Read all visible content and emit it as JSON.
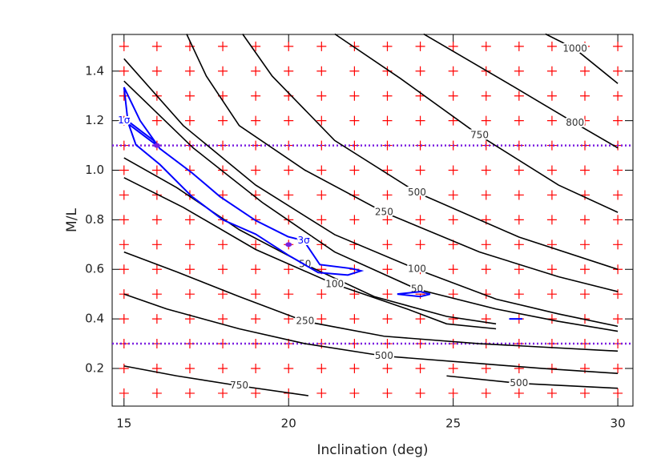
{
  "chart_data": {
    "type": "contour",
    "x_label": "Inclination (deg)",
    "y_label": "M/L",
    "xlim": [
      14.64,
      30.46
    ],
    "ylim": [
      0.048,
      1.548
    ],
    "xticks": [
      15,
      20,
      25,
      30
    ],
    "yticks": [
      0.2,
      0.4,
      0.6,
      0.8,
      {
        "value": 1,
        "label": "1.0"
      },
      1.2,
      1.4
    ],
    "model_grid": {
      "color": "#ff0000",
      "inclinations": [
        15,
        16,
        17,
        18,
        19,
        20,
        21,
        22,
        23,
        24,
        25,
        26,
        27,
        28,
        29,
        30
      ],
      "ml": [
        0.1,
        0.2,
        0.3,
        0.4,
        0.5,
        0.6,
        0.7,
        0.8,
        0.9,
        1.0,
        1.1,
        1.2,
        1.3,
        1.4,
        1.5
      ]
    },
    "hlines": {
      "color": "#7b1fe0",
      "values": [
        1.1,
        0.3
      ]
    },
    "contours": [
      {
        "label": "1000",
        "color": "#000000",
        "x": [
          27.8,
          28.7,
          30
        ],
        "y": [
          1.55,
          1.49,
          1.35
        ]
      },
      {
        "label": "800",
        "color": "#000000",
        "x": [
          24.1,
          26.8,
          28.7,
          30
        ],
        "y": [
          1.55,
          1.34,
          1.19,
          1.09
        ]
      },
      {
        "label": "750",
        "color": "#000000",
        "x": [
          21.4,
          23.4,
          25.8,
          28.2,
          30
        ],
        "y": [
          1.55,
          1.37,
          1.14,
          0.94,
          0.83
        ]
      },
      {
        "label": "500",
        "color": "#000000",
        "x": [
          18.6,
          19.5,
          21.4,
          23.9,
          27.0,
          30
        ],
        "y": [
          1.55,
          1.38,
          1.12,
          0.91,
          0.73,
          0.6
        ]
      },
      {
        "label": "250",
        "color": "#000000",
        "x": [
          16.9,
          17.5,
          18.5,
          20.5,
          22.9,
          25.8,
          28.2,
          30
        ],
        "y": [
          1.55,
          1.38,
          1.18,
          1.0,
          0.83,
          0.67,
          0.57,
          0.51
        ]
      },
      {
        "label": "100",
        "color": "#000000",
        "x": [
          15,
          16.8,
          19,
          21.4,
          23.9,
          26.3,
          28.2,
          30
        ],
        "y": [
          1.45,
          1.18,
          0.94,
          0.74,
          0.6,
          0.48,
          0.42,
          0.37
        ]
      },
      {
        "label": "50",
        "color": "#000000",
        "x": [
          15,
          17.1,
          19.2,
          21.4,
          23.9,
          26.3,
          28.2,
          30
        ],
        "y": [
          1.36,
          1.09,
          0.87,
          0.67,
          0.52,
          0.44,
          0.39,
          0.35
        ]
      },
      {
        "label": "50",
        "color": "#000000",
        "x": [
          15,
          16.6,
          18.5,
          20.5,
          22.6,
          24.8,
          26.3
        ],
        "y": [
          1.05,
          0.93,
          0.76,
          0.62,
          0.49,
          0.41,
          0.38
        ]
      },
      {
        "label": "100",
        "color": "#000000",
        "x": [
          15,
          16.8,
          19,
          21.4,
          23.6,
          24.8,
          26.3
        ],
        "y": [
          0.97,
          0.85,
          0.68,
          0.54,
          0.44,
          0.38,
          0.36
        ]
      },
      {
        "label": "250",
        "color": "#000000",
        "x": [
          15,
          16.6,
          18.5,
          20.5,
          22.9,
          25.8,
          30
        ],
        "y": [
          0.67,
          0.59,
          0.49,
          0.39,
          0.33,
          0.3,
          0.27
        ]
      },
      {
        "label": "500",
        "color": "#000000",
        "x": [
          15,
          16.3,
          18.5,
          20.5,
          22.9,
          25.8,
          27.7,
          30
        ],
        "y": [
          0.5,
          0.44,
          0.36,
          0.3,
          0.25,
          0.22,
          0.2,
          0.18
        ]
      },
      {
        "label": "500",
        "color": "#000000",
        "x": [
          24.8,
          27.0,
          30
        ],
        "y": [
          0.17,
          0.14,
          0.12
        ]
      },
      {
        "label": "750",
        "color": "#000000",
        "x": [
          15,
          16.6,
          18.5,
          20.6
        ],
        "y": [
          0.21,
          0.17,
          0.13,
          0.09
        ]
      },
      {
        "label": "3σ",
        "color": "#0000ff",
        "x": [
          15,
          15.49,
          16.09,
          17.06,
          17.91,
          19.0,
          19.98,
          20.46,
          20.95,
          21.92,
          22.2,
          21.8,
          20.9,
          19.98,
          19.0,
          18.0,
          17.06,
          16.09,
          15.36,
          15.12,
          15
        ],
        "y": [
          1.335,
          1.2,
          1.087,
          0.99,
          0.894,
          0.797,
          0.732,
          0.716,
          0.619,
          0.603,
          0.594,
          0.577,
          0.587,
          0.658,
          0.742,
          0.8,
          0.894,
          1.023,
          1.103,
          1.194,
          1.335
        ]
      },
      {
        "label": "1σ",
        "color": "#0000ff",
        "x": [
          15,
          16,
          15.9,
          15,
          15
        ],
        "y": [
          1.2,
          1.1,
          1.12,
          1.21,
          1.2
        ]
      },
      {
        "label": "",
        "color": "#0000ff",
        "x": [
          23.3,
          24,
          24.3,
          24,
          23.3
        ],
        "y": [
          0.5,
          0.51,
          0.5,
          0.49,
          0.5
        ]
      },
      {
        "label": "",
        "color": "#0000ff",
        "x": [
          26.7,
          27.1
        ],
        "y": [
          0.4,
          0.4
        ]
      }
    ],
    "minima": {
      "color": "#7b1fe0",
      "x": [
        16,
        20
      ],
      "y": [
        1.1,
        0.7
      ]
    }
  }
}
